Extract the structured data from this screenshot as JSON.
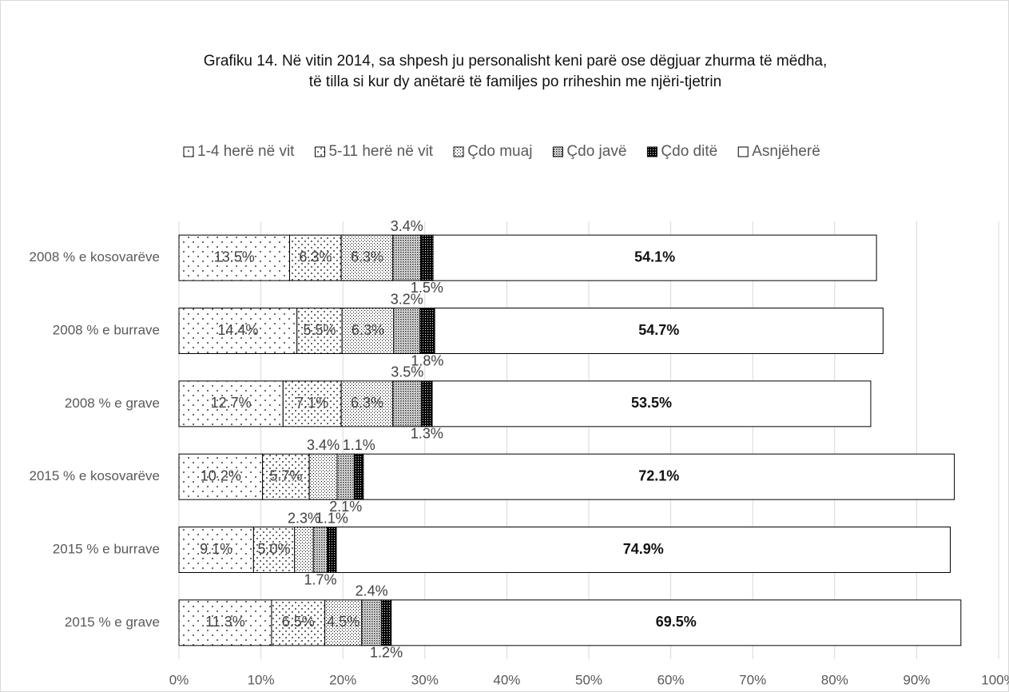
{
  "chart_data": {
    "type": "stacked-barh",
    "title": [
      "Grafiku 14. Në vitin 2014, sa shpesh ju personalisht keni parë ose dëgjuar zhurma të mëdha,",
      "të tilla si kur dy anëtarë të familjes po rriheshin me njëri-tjetrin"
    ],
    "categories": [
      "2008 % e kosovarëve",
      "2008 % e burrave",
      "2008 % e grave",
      "2015 % e kosovarëve",
      "2015 % e burrave",
      "2015 % e grave"
    ],
    "series": [
      {
        "name": "1-4 herë në vit",
        "values": [
          13.5,
          14.4,
          12.7,
          10.2,
          9.1,
          11.3
        ],
        "value_labels": [
          "13.5%",
          "14.4%",
          "12.7%",
          "10.2%",
          "9.1%",
          "11.3%"
        ]
      },
      {
        "name": "5-11 herë në vit",
        "values": [
          6.3,
          5.5,
          7.1,
          5.7,
          5.0,
          6.5
        ],
        "value_labels": [
          "6.3%",
          "5.5%",
          "7.1%",
          "5.7%",
          "5.0%",
          "6.5%"
        ]
      },
      {
        "name": "Çdo muaj",
        "values": [
          6.3,
          6.3,
          6.3,
          3.4,
          2.3,
          4.5
        ],
        "value_labels": [
          "6.3%",
          "6.3%",
          "6.3%",
          "3.4%",
          "2.3%",
          "4.5%"
        ]
      },
      {
        "name": "Çdo javë",
        "values": [
          3.4,
          3.2,
          3.5,
          2.1,
          1.7,
          2.4
        ],
        "value_labels": [
          "3.4%",
          "3.2%",
          "3.5%",
          "2.1%",
          "1.7%",
          "2.4%"
        ]
      },
      {
        "name": "Çdo ditë",
        "values": [
          1.5,
          1.8,
          1.3,
          1.1,
          1.1,
          1.2
        ],
        "value_labels": [
          "1.5%",
          "1.8%",
          "1.3%",
          "1.1%",
          "1.1%",
          "1.2%"
        ]
      },
      {
        "name": "Asnjëherë",
        "values": [
          54.1,
          54.7,
          53.5,
          72.1,
          74.9,
          69.5
        ],
        "value_labels": [
          "54.1%",
          "54.7%",
          "53.5%",
          "72.1%",
          "74.9%",
          "69.5%"
        ]
      }
    ],
    "xlim": [
      0,
      100
    ],
    "xticks": [
      {
        "value": 0,
        "label": "0%"
      },
      {
        "value": 10,
        "label": "10%"
      },
      {
        "value": 20,
        "label": "20%"
      },
      {
        "value": 30,
        "label": "30%"
      },
      {
        "value": 40,
        "label": "40%"
      },
      {
        "value": 50,
        "label": "50%"
      },
      {
        "value": 60,
        "label": "60%"
      },
      {
        "value": 70,
        "label": "70%"
      },
      {
        "value": 80,
        "label": "80%"
      },
      {
        "value": 90,
        "label": "90%"
      },
      {
        "value": 100,
        "label": "100%"
      }
    ],
    "grid": true,
    "legend": "top"
  }
}
